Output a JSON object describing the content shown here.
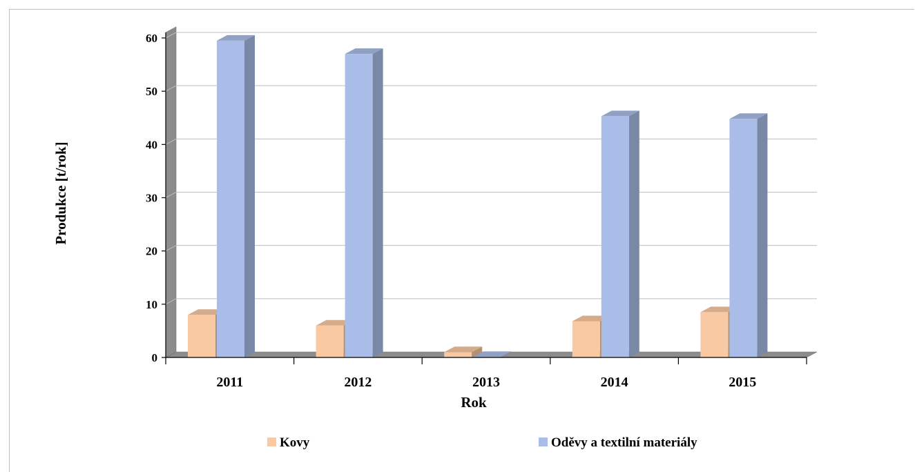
{
  "chart_data": {
    "type": "bar",
    "title": "",
    "xlabel": "Rok",
    "ylabel": "Produkce [t/rok]",
    "categories": [
      "2011",
      "2012",
      "2013",
      "2014",
      "2015"
    ],
    "ylim": [
      0,
      60
    ],
    "yticks": [
      0,
      10,
      20,
      30,
      40,
      50,
      60
    ],
    "grid": true,
    "legend_position": "bottom",
    "three_d": true,
    "series": [
      {
        "name": "Kovy",
        "color": "#f9c9a3",
        "values": [
          8.0,
          6.0,
          1.0,
          6.8,
          8.5
        ]
      },
      {
        "name": "Oděvy a textilní materiály",
        "color": "#a9bde8",
        "values": [
          59.5,
          57.0,
          0.1,
          45.3,
          44.8
        ]
      }
    ]
  }
}
